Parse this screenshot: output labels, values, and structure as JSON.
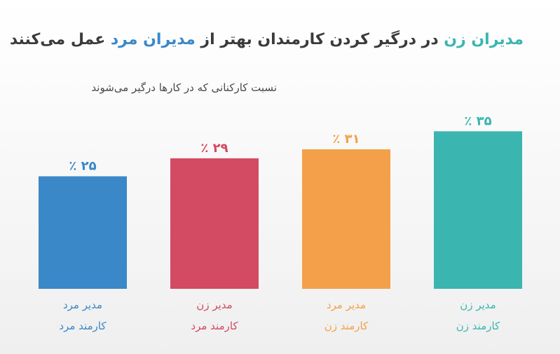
{
  "title": {
    "part1": "مدیران زن",
    "part2": " در درگیر کردن کارمندان بهتر از ",
    "part3": "مدیران مرد",
    "part4": " عمل می‌کنند"
  },
  "subtitle": "نسبت کارکنانی که در کارها درگیر می‌شوند",
  "chart_data": {
    "type": "bar",
    "title": "مدیران زن در درگیر کردن کارمندان بهتر از مدیران مرد عمل می‌کنند",
    "subtitle": "نسبت کارکنانی که در کارها درگیر می‌شوند",
    "ylim": [
      0,
      40
    ],
    "categories": [
      {
        "manager": "مدیر مرد",
        "employee": "کارمند مرد"
      },
      {
        "manager": "مدیر زن",
        "employee": "کارمند مرد"
      },
      {
        "manager": "مدیر مرد",
        "employee": "کارمند زن"
      },
      {
        "manager": "مدیر زن",
        "employee": "کارمند زن"
      }
    ],
    "values": [
      25,
      29,
      31,
      35
    ],
    "value_labels": [
      "۲۵ ٪",
      "۲۹ ٪",
      "۳۱ ٪",
      "۳۵ ٪"
    ],
    "colors": [
      "#3a88c8",
      "#d34a63",
      "#f4a04a",
      "#3bb5b0"
    ],
    "grid": false,
    "legend": "none"
  }
}
